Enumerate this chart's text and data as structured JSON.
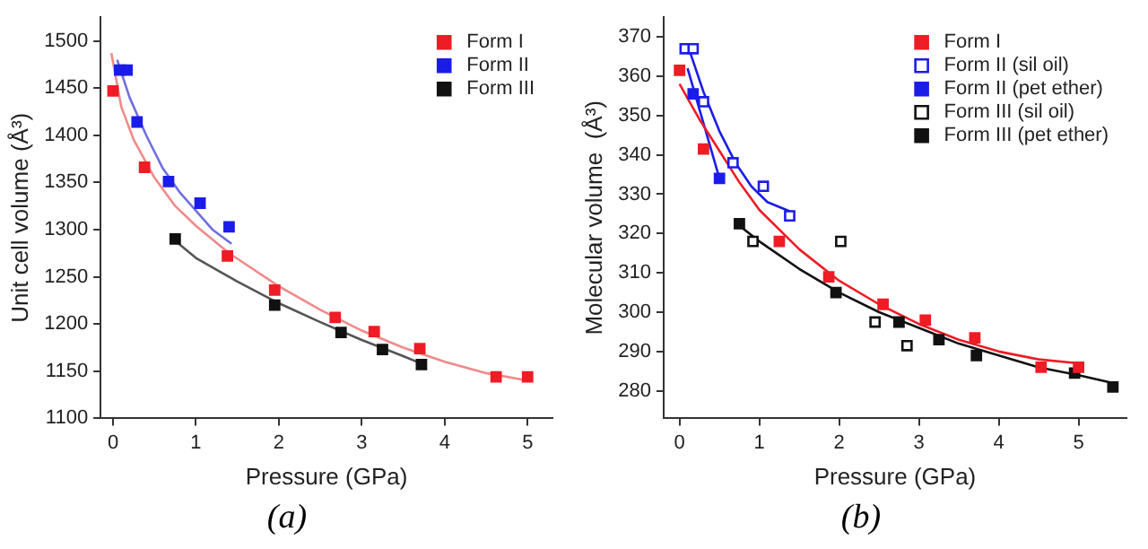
{
  "chart_data": [
    {
      "type": "scatter",
      "xlabel": "Pressure (GPa)",
      "ylabel": "Unit cell volume (Å³)",
      "xlim": [
        -0.15,
        5.3
      ],
      "xticks": [
        0,
        1,
        2,
        3,
        4,
        5
      ],
      "ylim": [
        1100,
        1525
      ],
      "yticks": [
        1100,
        1150,
        1200,
        1250,
        1300,
        1350,
        1400,
        1450,
        1500
      ],
      "grid": false,
      "legend": "top right",
      "marker": "square",
      "annotations": [
        "(a)"
      ],
      "series": [
        {
          "name": "Form I",
          "color": "#ee1c25",
          "x": [
            0,
            0.38,
            1.38,
            1.95,
            2.68,
            3.15,
            3.7,
            4.62,
            5.0
          ],
          "values": [
            1447,
            1366,
            1272,
            1236,
            1207,
            1192,
            1174,
            1144,
            1144
          ]
        },
        {
          "name": "Form II",
          "color": "#1c1ce8",
          "x": [
            0.08,
            0.17,
            0.29,
            0.67,
            1.05,
            1.4
          ],
          "values": [
            1469,
            1469,
            1414,
            1351,
            1328,
            1303
          ]
        },
        {
          "name": "Form III",
          "color": "#111111",
          "x": [
            0.75,
            1.95,
            2.75,
            3.25,
            3.72
          ],
          "values": [
            1290,
            1220,
            1191,
            1173,
            1157
          ]
        },
        {
          "type": "line",
          "marker": "none",
          "color": "#f08a8a",
          "x": [
            -0.02,
            0.1,
            0.25,
            0.5,
            0.75,
            1,
            1.4,
            2,
            2.5,
            3,
            3.5,
            4,
            4.5,
            5
          ],
          "values": [
            1487,
            1430,
            1395,
            1355,
            1325,
            1304,
            1275,
            1240,
            1215,
            1193,
            1175,
            1160,
            1148,
            1140
          ]
        },
        {
          "type": "line",
          "marker": "none",
          "color": "#7070e0",
          "x": [
            0.05,
            0.2,
            0.4,
            0.6,
            0.8,
            1.0,
            1.2,
            1.43
          ],
          "values": [
            1480,
            1440,
            1400,
            1365,
            1340,
            1320,
            1300,
            1285
          ]
        },
        {
          "type": "line",
          "marker": "none",
          "color": "#555555",
          "x": [
            0.75,
            1,
            1.5,
            2,
            2.5,
            3,
            3.5,
            3.72
          ],
          "values": [
            1288,
            1270,
            1245,
            1222,
            1202,
            1183,
            1166,
            1158
          ]
        }
      ]
    },
    {
      "type": "scatter",
      "xlabel": "Pressure (GPa)",
      "ylabel": "Molecular volume  (Å³)",
      "xlim": [
        -0.2,
        5.6
      ],
      "xticks": [
        0,
        1,
        2,
        3,
        4,
        5
      ],
      "ylim": [
        273,
        375
      ],
      "yticks": [
        280,
        290,
        300,
        310,
        320,
        330,
        340,
        350,
        360,
        370
      ],
      "grid": false,
      "legend": "top right",
      "marker": "square",
      "annotations": [
        "(b)"
      ],
      "series": [
        {
          "name": "Form I",
          "color": "#ee1c25",
          "x": [
            0,
            0.3,
            1.25,
            1.87,
            2.55,
            3.08,
            3.7,
            4.53,
            5.0
          ],
          "values": [
            361.5,
            341.5,
            318,
            309,
            302,
            298,
            293.5,
            286,
            286
          ]
        },
        {
          "name": "Form II (sil oil)",
          "color": "#1c1ce8",
          "marker": "square-open",
          "x": [
            0.07,
            0.17,
            0.3,
            0.67,
            1.05,
            1.38
          ],
          "values": [
            367,
            367,
            353.5,
            338,
            332,
            324.5
          ]
        },
        {
          "name": "Form II (pet ether)",
          "color": "#1c1ce8",
          "x": [
            0.17,
            0.5
          ],
          "values": [
            355.5,
            334
          ]
        },
        {
          "name": "Form III (sil oil)",
          "color": "#111111",
          "marker": "square-open",
          "x": [
            0.92,
            2.02,
            2.45,
            2.85
          ],
          "values": [
            318,
            318,
            297.5,
            291.5
          ]
        },
        {
          "name": "Form III (pet ether)",
          "color": "#111111",
          "x": [
            0.75,
            1.96,
            2.75,
            3.25,
            3.72,
            4.95,
            5.43
          ],
          "values": [
            322.5,
            305,
            297.5,
            293,
            289,
            284.5,
            281
          ]
        },
        {
          "type": "line",
          "marker": "none",
          "color": "#ee1c25",
          "x": [
            0,
            0.25,
            0.5,
            0.75,
            1,
            1.5,
            2,
            2.5,
            3,
            3.5,
            4,
            4.5,
            5
          ],
          "values": [
            358,
            349,
            341,
            333,
            326,
            316,
            308,
            302,
            297,
            293,
            290,
            288,
            287
          ]
        },
        {
          "type": "line",
          "marker": "none",
          "color": "#1c1ce8",
          "x": [
            0.1,
            0.3,
            0.5,
            0.7,
            0.9,
            1.1,
            1.4
          ],
          "values": [
            368,
            356,
            346,
            338,
            332,
            328,
            325.5
          ]
        },
        {
          "type": "line",
          "marker": "none",
          "color": "#1c1ce8",
          "x": [
            0.1,
            0.5
          ],
          "values": [
            362,
            334
          ]
        },
        {
          "type": "line",
          "marker": "none",
          "color": "#111111",
          "x": [
            0.75,
            1,
            1.5,
            2,
            2.5,
            3,
            3.5,
            4,
            4.5,
            5,
            5.43
          ],
          "values": [
            322,
            318,
            311,
            305,
            300,
            296,
            292,
            289,
            286,
            284,
            282
          ]
        }
      ]
    }
  ]
}
